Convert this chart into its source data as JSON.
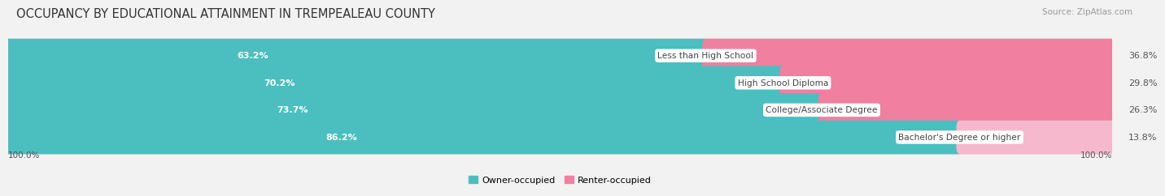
{
  "title": "OCCUPANCY BY EDUCATIONAL ATTAINMENT IN TREMPEALEAU COUNTY",
  "source": "Source: ZipAtlas.com",
  "categories": [
    "Less than High School",
    "High School Diploma",
    "College/Associate Degree",
    "Bachelor's Degree or higher"
  ],
  "owner_values": [
    63.2,
    70.2,
    73.7,
    86.2
  ],
  "renter_values": [
    36.8,
    29.8,
    26.3,
    13.8
  ],
  "owner_color": "#4bbfbf",
  "renter_color": "#f07fa0",
  "renter_color_last": "#f5b8cc",
  "background_color": "#f2f2f2",
  "bar_bg_color": "#e2e2e2",
  "title_fontsize": 10.5,
  "label_fontsize": 8.0,
  "tick_fontsize": 7.5,
  "source_fontsize": 7.5,
  "bar_height": 0.62,
  "bar_gap": 1.0,
  "xlim": [
    0,
    100
  ]
}
